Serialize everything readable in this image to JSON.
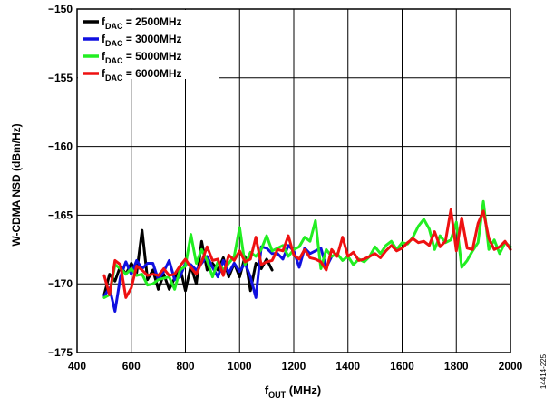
{
  "chart_data": {
    "type": "line",
    "xlabel_main": "f",
    "xlabel_sub": "OUT",
    "xlabel_unit": " (MHz)",
    "ylabel": "W-CDMA NSD (dBm/Hz)",
    "xlim": [
      400,
      2000
    ],
    "ylim": [
      -175,
      -150
    ],
    "xticks": [
      400,
      600,
      800,
      1000,
      1200,
      1400,
      1600,
      1800,
      2000
    ],
    "yticks": [
      -150,
      -155,
      -160,
      -165,
      -170,
      -175
    ],
    "xtick_labels": [
      "400",
      "600",
      "800",
      "1000",
      "1200",
      "1400",
      "1600",
      "1800",
      "2000"
    ],
    "ytick_labels": [
      "−150",
      "−155",
      "−160",
      "−165",
      "−170",
      "−175"
    ],
    "grid": true,
    "legend_position": "top-left",
    "figure_id": "14414-225",
    "series": [
      {
        "label_main": "f",
        "label_sub": "DAC",
        "label_value": " = 2500MHz",
        "color": "#000000",
        "x": [
          500,
          520,
          540,
          560,
          580,
          600,
          620,
          640,
          660,
          680,
          700,
          720,
          740,
          760,
          780,
          800,
          820,
          840,
          860,
          880,
          900,
          920,
          940,
          960,
          980,
          1000,
          1020,
          1040,
          1060,
          1080,
          1100,
          1120
        ],
        "y": [
          -170.8,
          -169.3,
          -169.8,
          -168.7,
          -169.3,
          -168.5,
          -169.2,
          -166.1,
          -169.7,
          -169.0,
          -170.4,
          -169.3,
          -170.4,
          -169.6,
          -168.8,
          -170.5,
          -168.7,
          -170.0,
          -166.9,
          -169.0,
          -168.5,
          -169.0,
          -168.1,
          -169.5,
          -168.5,
          -169.5,
          -168.0,
          -170.5,
          -168.5,
          -168.9,
          -168.2,
          -169.0
        ]
      },
      {
        "label_main": "f",
        "label_sub": "DAC",
        "label_value": " = 3000MHz",
        "color": "#1010e0",
        "x": [
          500,
          520,
          540,
          560,
          580,
          600,
          620,
          640,
          660,
          680,
          700,
          720,
          740,
          760,
          780,
          800,
          820,
          840,
          860,
          880,
          900,
          920,
          940,
          960,
          980,
          1000,
          1020,
          1040,
          1060,
          1080,
          1100,
          1120,
          1140,
          1160,
          1180,
          1200,
          1220,
          1240,
          1260,
          1280,
          1300,
          1320,
          1340
        ],
        "y": [
          -170.9,
          -170.3,
          -172.0,
          -169.5,
          -168.4,
          -169.3,
          -168.3,
          -168.9,
          -168.5,
          -168.5,
          -169.7,
          -169.1,
          -168.3,
          -169.7,
          -169.5,
          -168.5,
          -168.6,
          -169.0,
          -168.5,
          -168.0,
          -168.8,
          -169.5,
          -168.3,
          -169.2,
          -168.5,
          -169.1,
          -168.5,
          -169.5,
          -171.0,
          -167.3,
          -167.4,
          -167.8,
          -167.8,
          -168.2,
          -167.2,
          -167.6,
          -168.8,
          -167.4,
          -167.8,
          -167.6,
          -167.4,
          -168.8,
          -168.0
        ]
      },
      {
        "label_main": "f",
        "label_sub": "DAC",
        "label_value": " = 5000MHz",
        "color": "#22ee22",
        "x": [
          500,
          520,
          540,
          560,
          580,
          600,
          620,
          640,
          660,
          680,
          700,
          720,
          740,
          760,
          780,
          800,
          820,
          840,
          860,
          880,
          900,
          920,
          940,
          960,
          980,
          1000,
          1020,
          1040,
          1060,
          1080,
          1100,
          1120,
          1140,
          1160,
          1180,
          1200,
          1220,
          1240,
          1260,
          1280,
          1300,
          1320,
          1340,
          1360,
          1380,
          1400,
          1420,
          1440,
          1460,
          1480,
          1500,
          1520,
          1540,
          1560,
          1580,
          1600,
          1620,
          1640,
          1660,
          1680,
          1700,
          1720,
          1740,
          1760,
          1780,
          1800,
          1820,
          1840,
          1860,
          1880,
          1900,
          1920,
          1940,
          1960,
          1980,
          2000
        ],
        "y": [
          -171.0,
          -170.8,
          -168.6,
          -168.9,
          -169.3,
          -168.9,
          -169.4,
          -169.3,
          -170.1,
          -170.0,
          -169.7,
          -169.6,
          -169.5,
          -170.4,
          -169.0,
          -168.7,
          -166.4,
          -168.5,
          -167.5,
          -168.3,
          -169.5,
          -168.4,
          -169.0,
          -168.5,
          -168.0,
          -165.9,
          -168.6,
          -167.7,
          -168.0,
          -167.5,
          -166.5,
          -167.6,
          -167.4,
          -167.2,
          -168.0,
          -167.5,
          -167.3,
          -166.6,
          -166.9,
          -165.4,
          -168.9,
          -167.5,
          -168.0,
          -167.8,
          -168.3,
          -168.0,
          -168.6,
          -168.2,
          -168.4,
          -168.0,
          -167.3,
          -167.8,
          -167.2,
          -166.9,
          -167.5,
          -167.0,
          -167.1,
          -166.6,
          -165.8,
          -165.3,
          -166.0,
          -167.5,
          -166.5,
          -167.0,
          -166.8,
          -165.5,
          -168.8,
          -168.3,
          -167.6,
          -167.0,
          -164.0,
          -167.5,
          -166.8,
          -167.8,
          -167.0,
          -167.3
        ]
      },
      {
        "label_main": "f",
        "label_sub": "DAC",
        "label_value": " = 6000MHz",
        "color": "#ee1111",
        "x": [
          500,
          520,
          540,
          560,
          580,
          600,
          620,
          640,
          660,
          680,
          700,
          720,
          740,
          760,
          780,
          800,
          820,
          840,
          860,
          880,
          900,
          920,
          940,
          960,
          980,
          1000,
          1020,
          1040,
          1060,
          1080,
          1100,
          1120,
          1140,
          1160,
          1180,
          1200,
          1220,
          1240,
          1260,
          1280,
          1300,
          1320,
          1340,
          1360,
          1380,
          1400,
          1420,
          1440,
          1460,
          1480,
          1500,
          1520,
          1540,
          1560,
          1580,
          1600,
          1620,
          1640,
          1660,
          1680,
          1700,
          1720,
          1740,
          1760,
          1780,
          1800,
          1820,
          1840,
          1860,
          1880,
          1900,
          1920,
          1940,
          1960,
          1980,
          2000
        ],
        "y": [
          -169.4,
          -170.8,
          -168.3,
          -168.6,
          -171.0,
          -170.3,
          -168.7,
          -169.0,
          -169.4,
          -169.3,
          -169.4,
          -168.9,
          -169.4,
          -169.3,
          -168.7,
          -168.2,
          -168.8,
          -169.3,
          -168.4,
          -167.3,
          -168.3,
          -168.2,
          -169.4,
          -167.9,
          -168.3,
          -167.6,
          -168.4,
          -168.2,
          -166.6,
          -168.6,
          -168.4,
          -168.3,
          -167.5,
          -167.6,
          -166.5,
          -167.9,
          -168.2,
          -167.5,
          -168.1,
          -168.2,
          -168.4,
          -169.0,
          -167.5,
          -168.0,
          -166.6,
          -168.0,
          -167.7,
          -168.3,
          -168.2,
          -168.0,
          -167.8,
          -168.1,
          -167.6,
          -167.2,
          -167.6,
          -167.4,
          -167.0,
          -166.7,
          -167.0,
          -166.9,
          -167.2,
          -166.2,
          -167.3,
          -166.9,
          -164.6,
          -167.6,
          -165.2,
          -167.4,
          -167.5,
          -165.6,
          -164.7,
          -166.7,
          -167.5,
          -167.3,
          -166.9,
          -167.5
        ]
      }
    ]
  }
}
